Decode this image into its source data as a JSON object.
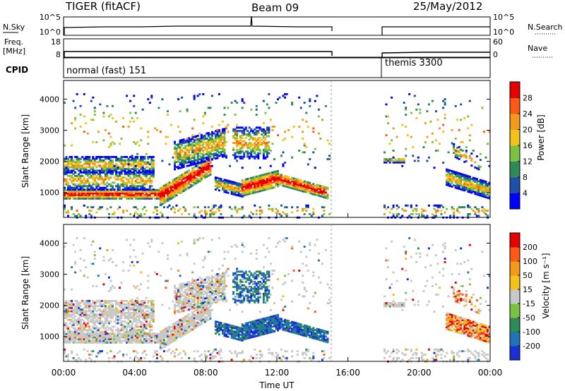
{
  "header": {
    "radar": "TIGER (fitACF)",
    "beam": "Beam 09",
    "date": "25/May/2012"
  },
  "panels": {
    "nsky": {
      "label": "N.Sky",
      "ticks": [
        "10^5",
        "10^0"
      ],
      "right_label": "N.Search",
      "right_ticks": [
        "10^5",
        "10^0"
      ]
    },
    "freq": {
      "label_top": "Freq.",
      "label_unit": "[MHz]",
      "ticks": [
        "18",
        "8"
      ],
      "right_label": "Nave",
      "right_ticks": [
        "60",
        "0"
      ]
    },
    "cpid": {
      "label": "CPID",
      "segments": [
        "normal (fast) 151",
        "themis 3300"
      ]
    }
  },
  "chart_data": {
    "type": "heatmap",
    "x": {
      "label": "Time UT",
      "range_hours": [
        0,
        24
      ],
      "ticks": [
        "00:00",
        "04:00",
        "08:00",
        "12:00",
        "16:00",
        "20:00",
        "00:00"
      ]
    },
    "y": {
      "label": "Slant Range [km]",
      "range": [
        200,
        4600
      ],
      "ticks": [
        "1000",
        "2000",
        "3000",
        "4000"
      ]
    },
    "data_gap_hours": [
      15,
      18
    ],
    "power": {
      "colorbar_label": "Power [dB]",
      "colorbar_ticks": [
        "28",
        "24",
        "20",
        "16",
        "12",
        "8",
        "4"
      ],
      "colors": [
        "#0000ff",
        "#1f4fa8",
        "#2e8b57",
        "#7cc242",
        "#f2c11a",
        "#f39a1a",
        "#ff5a14",
        "#e60000"
      ]
    },
    "velocity": {
      "colorbar_label": "Velocity [m s⁻¹]",
      "colorbar_ticks": [
        "200",
        "100",
        "50",
        "15",
        "-15",
        "-50",
        "-100",
        "-200"
      ],
      "colors": [
        "#1a2fd6",
        "#1f73b8",
        "#2e8b57",
        "#7cc242",
        "#c8c8c8",
        "#f2c11a",
        "#f39a1a",
        "#ff5a14",
        "#e60000"
      ]
    }
  }
}
